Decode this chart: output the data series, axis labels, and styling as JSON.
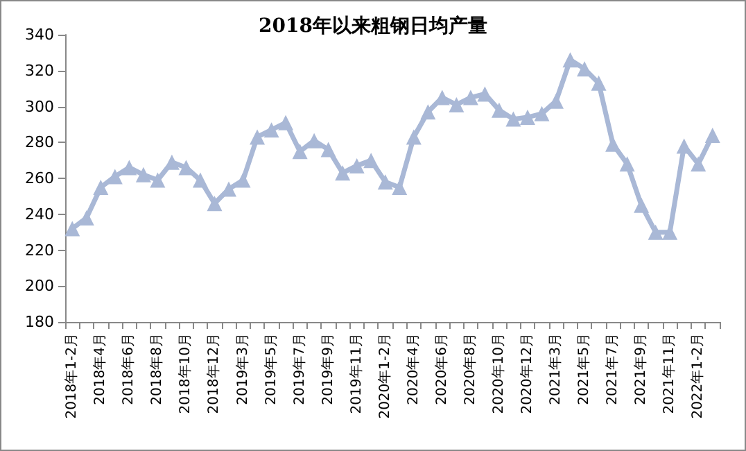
{
  "chart_data": {
    "type": "line",
    "title": "2018年以来粗钢日均产量",
    "categories": [
      "2018年1-2月",
      null,
      "2018年4月",
      null,
      "2018年6月",
      null,
      "2018年8月",
      null,
      "2018年10月",
      null,
      "2018年12月",
      null,
      "2019年3月",
      null,
      "2019年5月",
      null,
      "2019年7月",
      null,
      "2019年9月",
      null,
      "2019年11月",
      null,
      "2020年1-2月",
      null,
      "2020年4月",
      null,
      "2020年6月",
      null,
      "2020年8月",
      null,
      "2020年10月",
      null,
      "2020年12月",
      null,
      "2021年3月",
      null,
      "2021年5月",
      null,
      "2021年7月",
      null,
      "2021年9月",
      null,
      "2021年11月",
      null,
      "2022年1-2月",
      null
    ],
    "series": [
      {
        "color": "#a9b8d6",
        "values": [
          232,
          238,
          255,
          261,
          266,
          262,
          259,
          269,
          266,
          259,
          246,
          254,
          259,
          283,
          287,
          291,
          275,
          281,
          276,
          263,
          267,
          270,
          258,
          255,
          283,
          297,
          305,
          301,
          305,
          307,
          298,
          293,
          294,
          296,
          303,
          326,
          321,
          313,
          279,
          268,
          245,
          230,
          230,
          278,
          268,
          284
        ]
      }
    ],
    "ylim": [
      180,
      340
    ],
    "yticks": [
      180,
      200,
      220,
      240,
      260,
      280,
      300,
      320,
      340
    ],
    "grid": false,
    "marker": "triangle",
    "line_style": "solid"
  }
}
